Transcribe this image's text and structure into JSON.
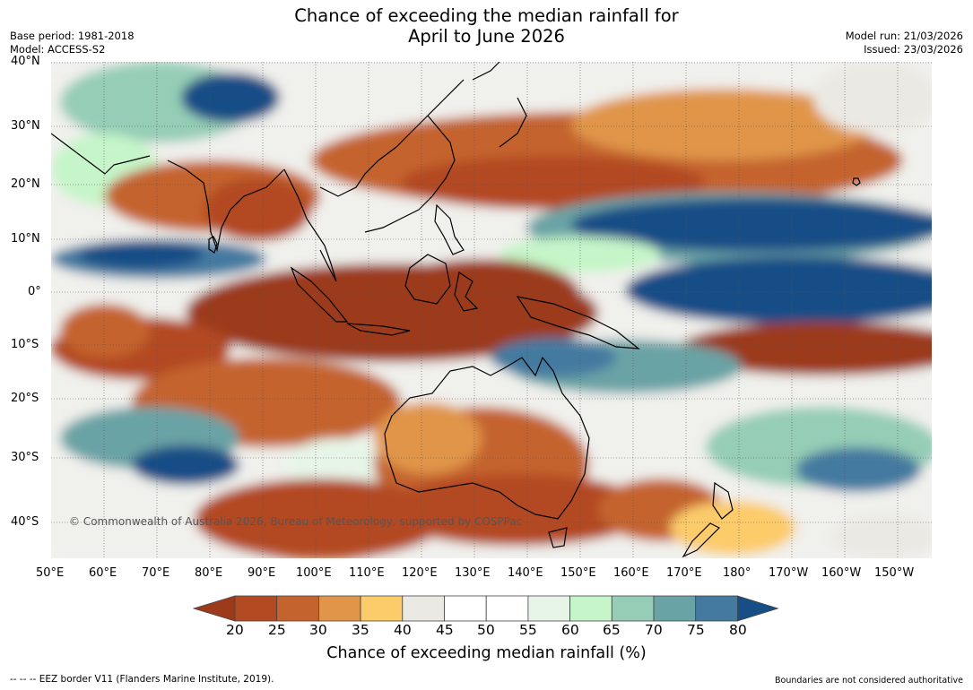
{
  "title_line1": "Chance of exceeding the median rainfall for",
  "title_line2": "April to June 2026",
  "base_period": "Base period: 1981-2018",
  "model": "Model: ACCESS-S2",
  "model_run": "Model run: 21/03/2026",
  "issued": "Issued: 23/03/2026",
  "lat_labels": [
    "40°N",
    "30°N",
    "20°N",
    "10°N",
    "0°",
    "10°S",
    "20°S",
    "30°S",
    "40°S"
  ],
  "lon_labels": [
    "50°E",
    "60°E",
    "70°E",
    "80°E",
    "90°E",
    "100°E",
    "110°E",
    "120°E",
    "130°E",
    "140°E",
    "150°E",
    "160°E",
    "170°E",
    "180°",
    "170°W",
    "160°W",
    "150°W"
  ],
  "copyright": "© Commonwealth of Australia 2026, Bureau of Meteorology, supported by COSPPac",
  "colorbar": {
    "ticks": [
      "20",
      "25",
      "30",
      "35",
      "40",
      "45",
      "50",
      "55",
      "60",
      "65",
      "70",
      "75",
      "80"
    ],
    "title": "Chance of exceeding median rainfall (%)",
    "colors": [
      "#9c3a1c",
      "#b34a22",
      "#c4632e",
      "#e09548",
      "#fccb6a",
      "#ebe9e3",
      "#ffffff",
      "#ffffff",
      "#e7f5e8",
      "#c5f5c8",
      "#95cdb6",
      "#6aa3a5",
      "#457aa0",
      "#174e86"
    ]
  },
  "footer_left": "--  --  -- EEZ border V11 (Flanders Marine Institute, 2019).",
  "footer_right": "Boundaries are not considered authoritative"
}
